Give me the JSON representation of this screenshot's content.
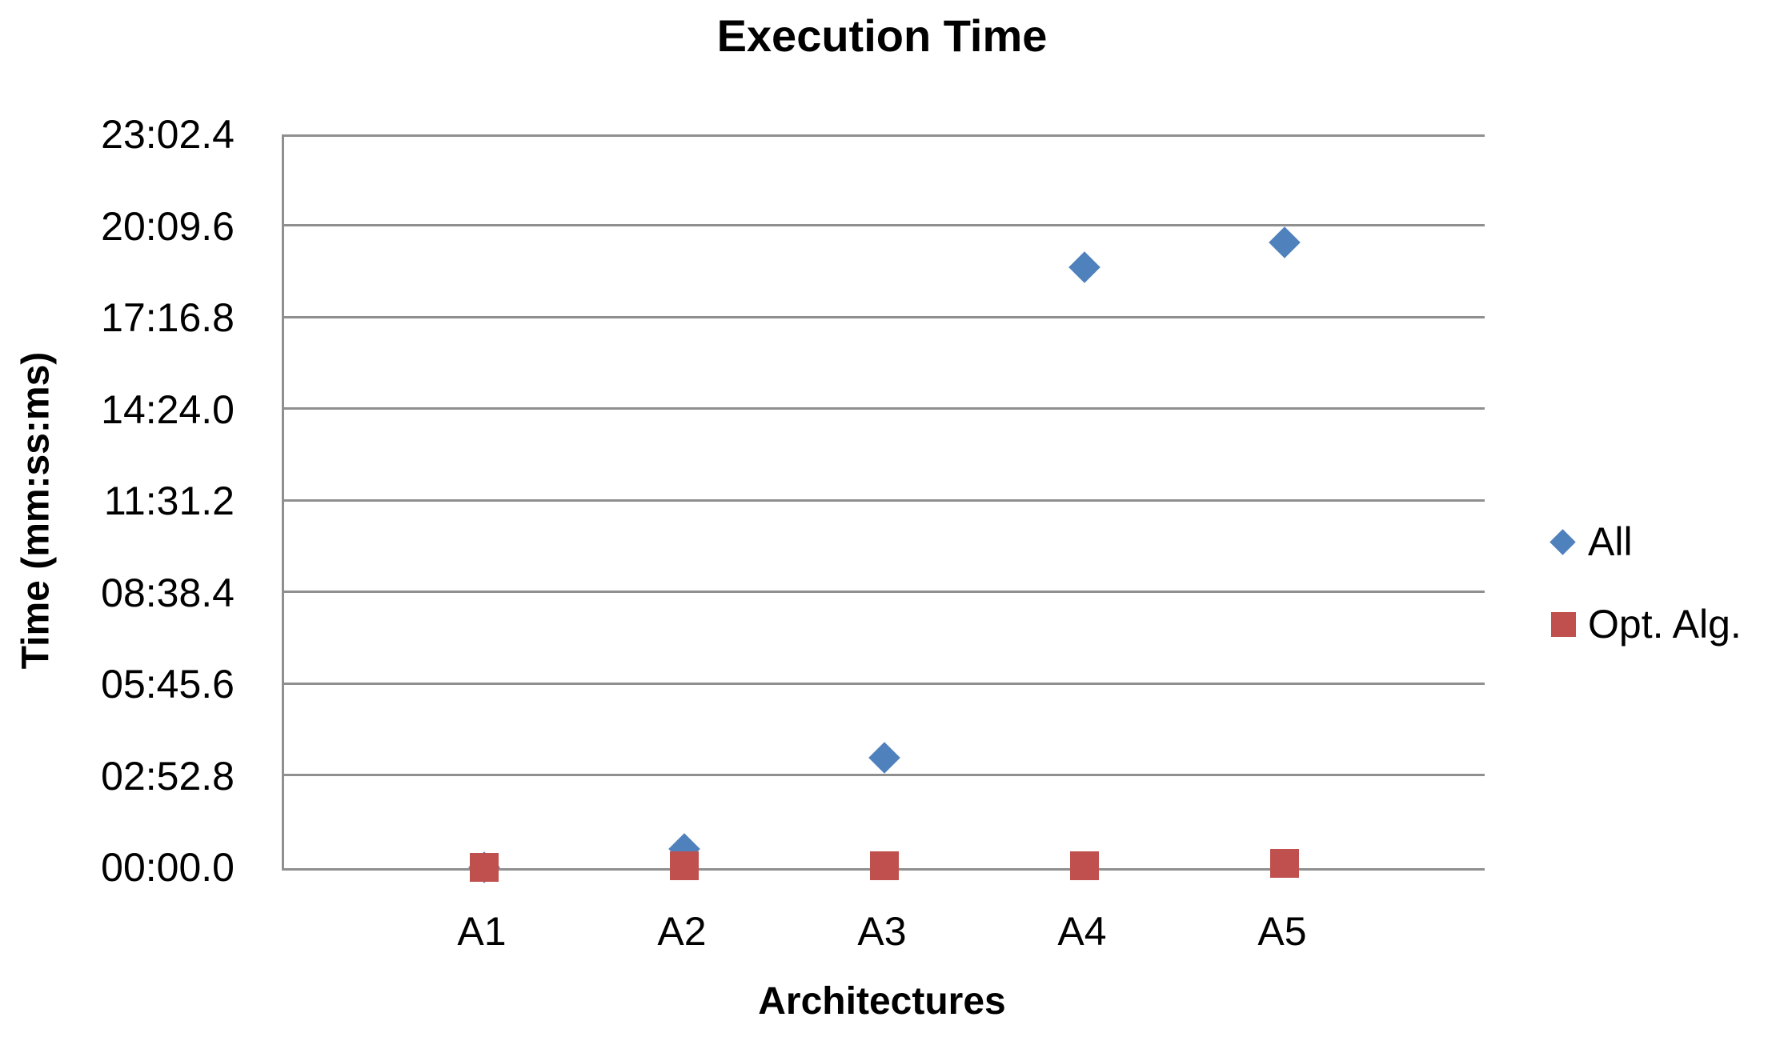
{
  "chart_data": {
    "type": "scatter",
    "title": "Execution Time",
    "xlabel": "Architectures",
    "ylabel": "Time (mm:ss:ms)",
    "categories": [
      "A1",
      "A2",
      "A3",
      "A4",
      "A5"
    ],
    "y_axis": {
      "unit": "mm:ss.ms",
      "min_seconds": 0,
      "max_seconds": 1382.4,
      "tick_step_seconds": 172.8,
      "tick_labels_top_to_bottom": [
        "23:02.4",
        "20:09.6",
        "17:16.8",
        "14:24.0",
        "11:31.2",
        "08:38.4",
        "05:45.6",
        "02:52.8",
        "00:00.0"
      ],
      "tick_values_seconds_top_to_bottom": [
        1382.4,
        1209.6,
        1036.8,
        864.0,
        691.2,
        518.4,
        345.6,
        172.8,
        0.0
      ],
      "gridlines": true
    },
    "series": [
      {
        "name": "All",
        "marker": "diamond",
        "color": "#4F81BD",
        "values_seconds_estimated": [
          1,
          36,
          208,
          1132,
          1179
        ],
        "values_mmss_estimated": [
          "00:01",
          "00:36",
          "03:28",
          "18:52",
          "19:39"
        ]
      },
      {
        "name": "Opt. Alg.",
        "marker": "square",
        "color": "#C0504D",
        "values_seconds_estimated": [
          1,
          4,
          5,
          5,
          9
        ],
        "values_mmss_estimated": [
          "00:01",
          "00:04",
          "00:05",
          "00:05",
          "00:09"
        ]
      }
    ],
    "legend": {
      "position": "right",
      "entries": [
        "All",
        "Opt. Alg."
      ]
    },
    "layout_hints": {
      "gridlines_horizontal_only": true,
      "plot_frame": "left and bottom axis lines only",
      "x_points_at_units_1_to_5_of_0_to_6": true
    }
  },
  "colors": {
    "series_all": "#4F81BD",
    "series_opt_alg": "#C0504D",
    "gridline": "#8F8F8F",
    "axis_line": "#8F8F8F",
    "text": "#000000",
    "background": "#FFFFFF"
  }
}
